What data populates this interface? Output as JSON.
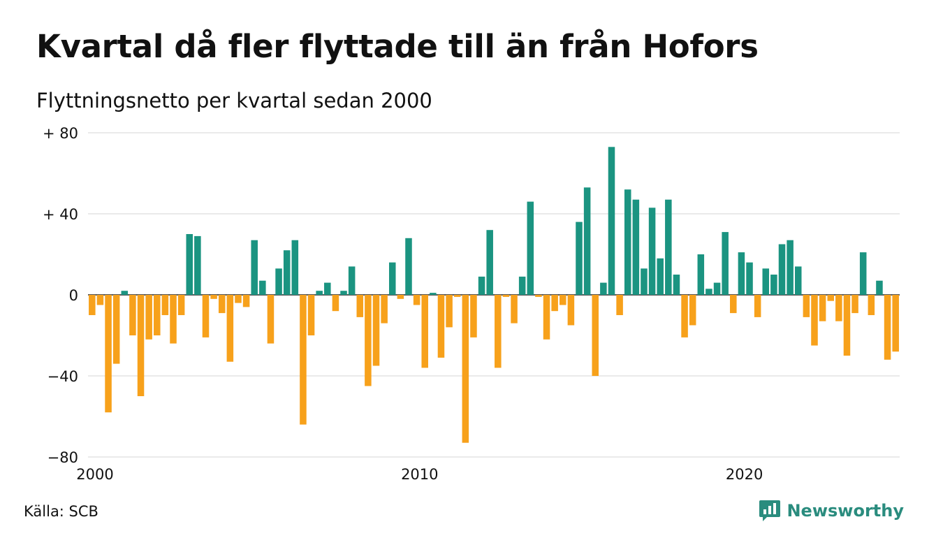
{
  "header": {
    "title": "Kvartal då fler flyttade till än från Hofors",
    "subtitle": "Flyttningsnetto per kvartal sedan 2000"
  },
  "footer": {
    "source": "Källa: SCB",
    "brand": "Newsworthy"
  },
  "colors": {
    "positive": "#1b9481",
    "negative": "#f7a11b",
    "grid": "#dddddd",
    "brand": "#2a8c7e"
  },
  "icons": {
    "brand_logo": "newsworthy-logo-icon"
  },
  "chart_data": {
    "type": "bar",
    "title": "Kvartal då fler flyttade till än från Hofors",
    "subtitle": "Flyttningsnetto per kvartal sedan 2000",
    "xlabel": "",
    "ylabel": "",
    "ylim": [
      -80,
      80
    ],
    "y_ticks": [
      80,
      40,
      0,
      -40,
      -80
    ],
    "y_tick_labels": [
      "+ 80",
      "+ 40",
      "0",
      "−40",
      "−80"
    ],
    "x_ticks": [
      2000,
      2010,
      2020
    ],
    "x_tick_labels": [
      "2000",
      "2010",
      "2020"
    ],
    "grid": true,
    "start_year": 2000,
    "periods_per_year": 4,
    "values": [
      -10,
      -5,
      -58,
      -34,
      2,
      -20,
      -50,
      -22,
      -20,
      -10,
      -24,
      -10,
      30,
      29,
      -21,
      -2,
      -9,
      -33,
      -4,
      -6,
      27,
      7,
      -24,
      13,
      22,
      27,
      -64,
      -20,
      2,
      6,
      -8,
      2,
      14,
      -11,
      -45,
      -35,
      -14,
      16,
      -2,
      28,
      -5,
      -36,
      1,
      -31,
      -16,
      -1,
      -73,
      -21,
      9,
      32,
      -36,
      -1,
      -14,
      9,
      46,
      -1,
      -22,
      -8,
      -5,
      -15,
      36,
      53,
      -40,
      6,
      73,
      -10,
      52,
      47,
      13,
      43,
      18,
      47,
      10,
      -21,
      -15,
      20,
      3,
      6,
      31,
      -9,
      21,
      16,
      -11,
      13,
      10,
      25,
      27,
      14,
      -11,
      -25,
      -13,
      -3,
      -13,
      -30,
      -9,
      21,
      -10,
      7,
      -32,
      -28
    ]
  }
}
